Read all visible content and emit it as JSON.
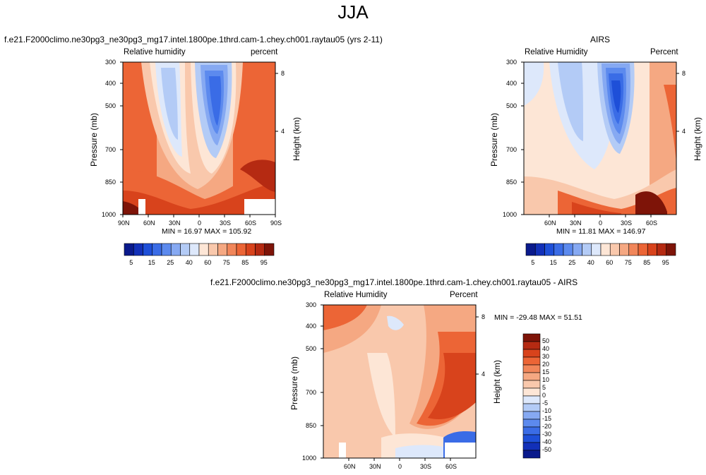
{
  "page": {
    "title": "JJA"
  },
  "chart_data": [
    {
      "type": "heatmap",
      "title": "f.e21.F2000climo.ne30pg3_ne30pg3_mg17.intel.1800pe.1thrd.cam-1.chey.ch001.raytau05 (yrs 2-11)",
      "left_label": "Relative humidity",
      "right_label": "percent",
      "ylabel": "Pressure (mb)",
      "y2label": "Height (km)",
      "x_ticks": [
        "90N",
        "60N",
        "30N",
        "0",
        "30S",
        "60S",
        "90S"
      ],
      "y_ticks": [
        "300",
        "400",
        "500",
        "700",
        "850",
        "1000"
      ],
      "y2_ticks": [
        "8",
        "4"
      ],
      "stats": "MIN = 16.97 MAX = 105.92",
      "colorbar_labels": [
        "5",
        "15",
        "25",
        "40",
        "60",
        "75",
        "85",
        "95"
      ]
    },
    {
      "type": "heatmap",
      "title": "AIRS",
      "left_label": "Relative Humidity",
      "right_label": "Percent",
      "ylabel": "Pressure (mb)",
      "y2label": "Height (km)",
      "x_ticks": [
        "60N",
        "30N",
        "0",
        "30S",
        "60S"
      ],
      "y_ticks": [
        "300",
        "400",
        "500",
        "700",
        "850",
        "1000"
      ],
      "y2_ticks": [
        "8",
        "4"
      ],
      "stats": "MIN = 11.81 MAX = 146.97",
      "colorbar_labels": [
        "5",
        "15",
        "25",
        "40",
        "60",
        "75",
        "85",
        "95"
      ]
    },
    {
      "type": "heatmap",
      "title": "f.e21.F2000climo.ne30pg3_ne30pg3_mg17.intel.1800pe.1thrd.cam-1.chey.ch001.raytau05 - AIRS",
      "left_label": "Relative Humidity",
      "right_label": "Percent",
      "ylabel": "Pressure (mb)",
      "y2label": "Height (km)",
      "x_ticks": [
        "60N",
        "30N",
        "0",
        "30S",
        "60S"
      ],
      "y_ticks": [
        "300",
        "400",
        "500",
        "700",
        "850",
        "1000"
      ],
      "y2_ticks": [
        "8",
        "4"
      ],
      "stats": "MIN = -29.48 MAX = 51.51",
      "colorbar_labels": [
        "50",
        "40",
        "30",
        "20",
        "15",
        "10",
        "5",
        "0",
        "-5",
        "-10",
        "-15",
        "-20",
        "-30",
        "-40",
        "-50"
      ]
    }
  ],
  "colors": {
    "absolute_scale": [
      "#0a1a8c",
      "#1230b8",
      "#1e4fd8",
      "#3a6ce6",
      "#5c8aee",
      "#86a9f2",
      "#b3cbf6",
      "#dde8fb",
      "#fde6d6",
      "#f9c8ac",
      "#f5a882",
      "#f1865a",
      "#ec6536",
      "#d8431c",
      "#b52a12",
      "#7e1408"
    ],
    "diff_scale": [
      "#7e1408",
      "#b52a12",
      "#d8431c",
      "#ec6536",
      "#f1865a",
      "#f5a882",
      "#f9c8ac",
      "#fde6d6",
      "#dde8fb",
      "#b3cbf6",
      "#86a9f2",
      "#5c8aee",
      "#3a6ce6",
      "#1e4fd8",
      "#1230b8",
      "#0a1a8c"
    ]
  }
}
